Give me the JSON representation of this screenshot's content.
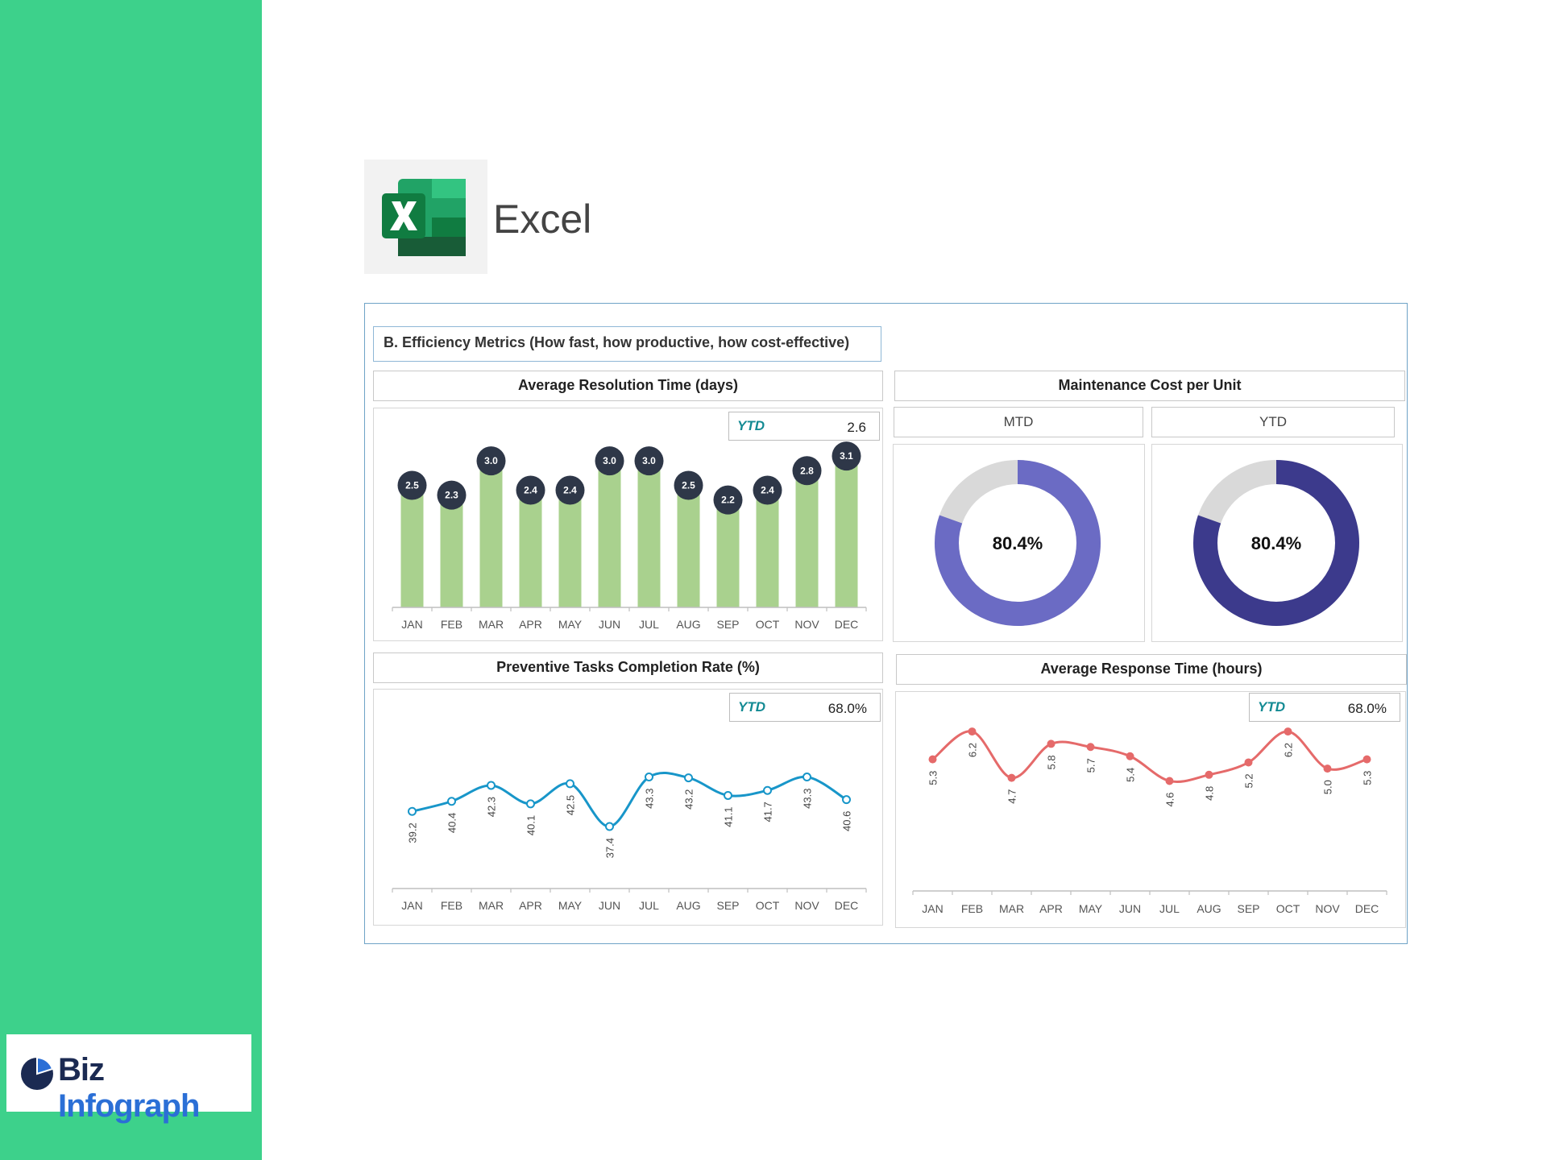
{
  "app": {
    "name": "Excel"
  },
  "brand": {
    "part1": "Biz",
    "part2": "Infograph"
  },
  "dashboard": {
    "title": "B. Efficiency Metrics (How fast, how productive, how cost-effective)"
  },
  "colors": {
    "sidebar": "#3dd18b",
    "bar": "#a9d18e",
    "bubble": "#2e3748",
    "mtd_ring": "#6b6bc4",
    "ytd_ring": "#3c3a8c",
    "ring_rest": "#d9d9d9",
    "line_blue": "#1896c9",
    "line_red": "#e56a6a"
  },
  "chart_data": [
    {
      "type": "bar",
      "title": "Average Resolution Time (days)",
      "ytd_label": "YTD",
      "ytd_value": "2.6",
      "categories": [
        "JAN",
        "FEB",
        "MAR",
        "APR",
        "MAY",
        "JUN",
        "JUL",
        "AUG",
        "SEP",
        "OCT",
        "NOV",
        "DEC"
      ],
      "values": [
        2.5,
        2.3,
        3.0,
        2.4,
        2.4,
        3.0,
        3.0,
        2.5,
        2.2,
        2.4,
        2.8,
        3.1
      ],
      "labels": [
        "2.5",
        "2.3",
        "3.0",
        "2.4",
        "2.4",
        "3.0",
        "3.0",
        "2.5",
        "2.2",
        "2.4",
        "2.8",
        "3.1"
      ],
      "ylim": [
        0,
        3.3
      ]
    },
    {
      "type": "pie",
      "title": "Maintenance Cost per Unit",
      "panels": [
        {
          "name": "MTD",
          "value": 80.4,
          "label": "80.4%"
        },
        {
          "name": "YTD",
          "value": 80.4,
          "label": "80.4%"
        }
      ]
    },
    {
      "type": "line",
      "title": "Preventive Tasks Completion Rate (%)",
      "ytd_label": "YTD",
      "ytd_value": "68.0%",
      "categories": [
        "JAN",
        "FEB",
        "MAR",
        "APR",
        "MAY",
        "JUN",
        "JUL",
        "AUG",
        "SEP",
        "OCT",
        "NOV",
        "DEC"
      ],
      "values": [
        39.2,
        40.4,
        42.3,
        40.1,
        42.5,
        37.4,
        43.3,
        43.2,
        41.1,
        41.7,
        43.3,
        40.6
      ],
      "labels": [
        "39.2",
        "40.4",
        "42.3",
        "40.1",
        "42.5",
        "37.4",
        "43.3",
        "43.2",
        "41.1",
        "41.7",
        "43.3",
        "40.6"
      ],
      "ylim": [
        35,
        47
      ]
    },
    {
      "type": "line",
      "title": "Average Response Time (hours)",
      "ytd_label": "YTD",
      "ytd_value": "68.0%",
      "categories": [
        "JAN",
        "FEB",
        "MAR",
        "APR",
        "MAY",
        "JUN",
        "JUL",
        "AUG",
        "SEP",
        "OCT",
        "NOV",
        "DEC"
      ],
      "values": [
        5.3,
        6.2,
        4.7,
        5.8,
        5.7,
        5.4,
        4.6,
        4.8,
        5.2,
        6.2,
        5.0,
        5.3
      ],
      "labels": [
        "5.3",
        "6.2",
        "4.7",
        "5.8",
        "5.7",
        "5.4",
        "4.6",
        "4.8",
        "5.2",
        "6.2",
        "5.0",
        "5.3"
      ],
      "ylim": [
        0,
        8
      ]
    }
  ]
}
